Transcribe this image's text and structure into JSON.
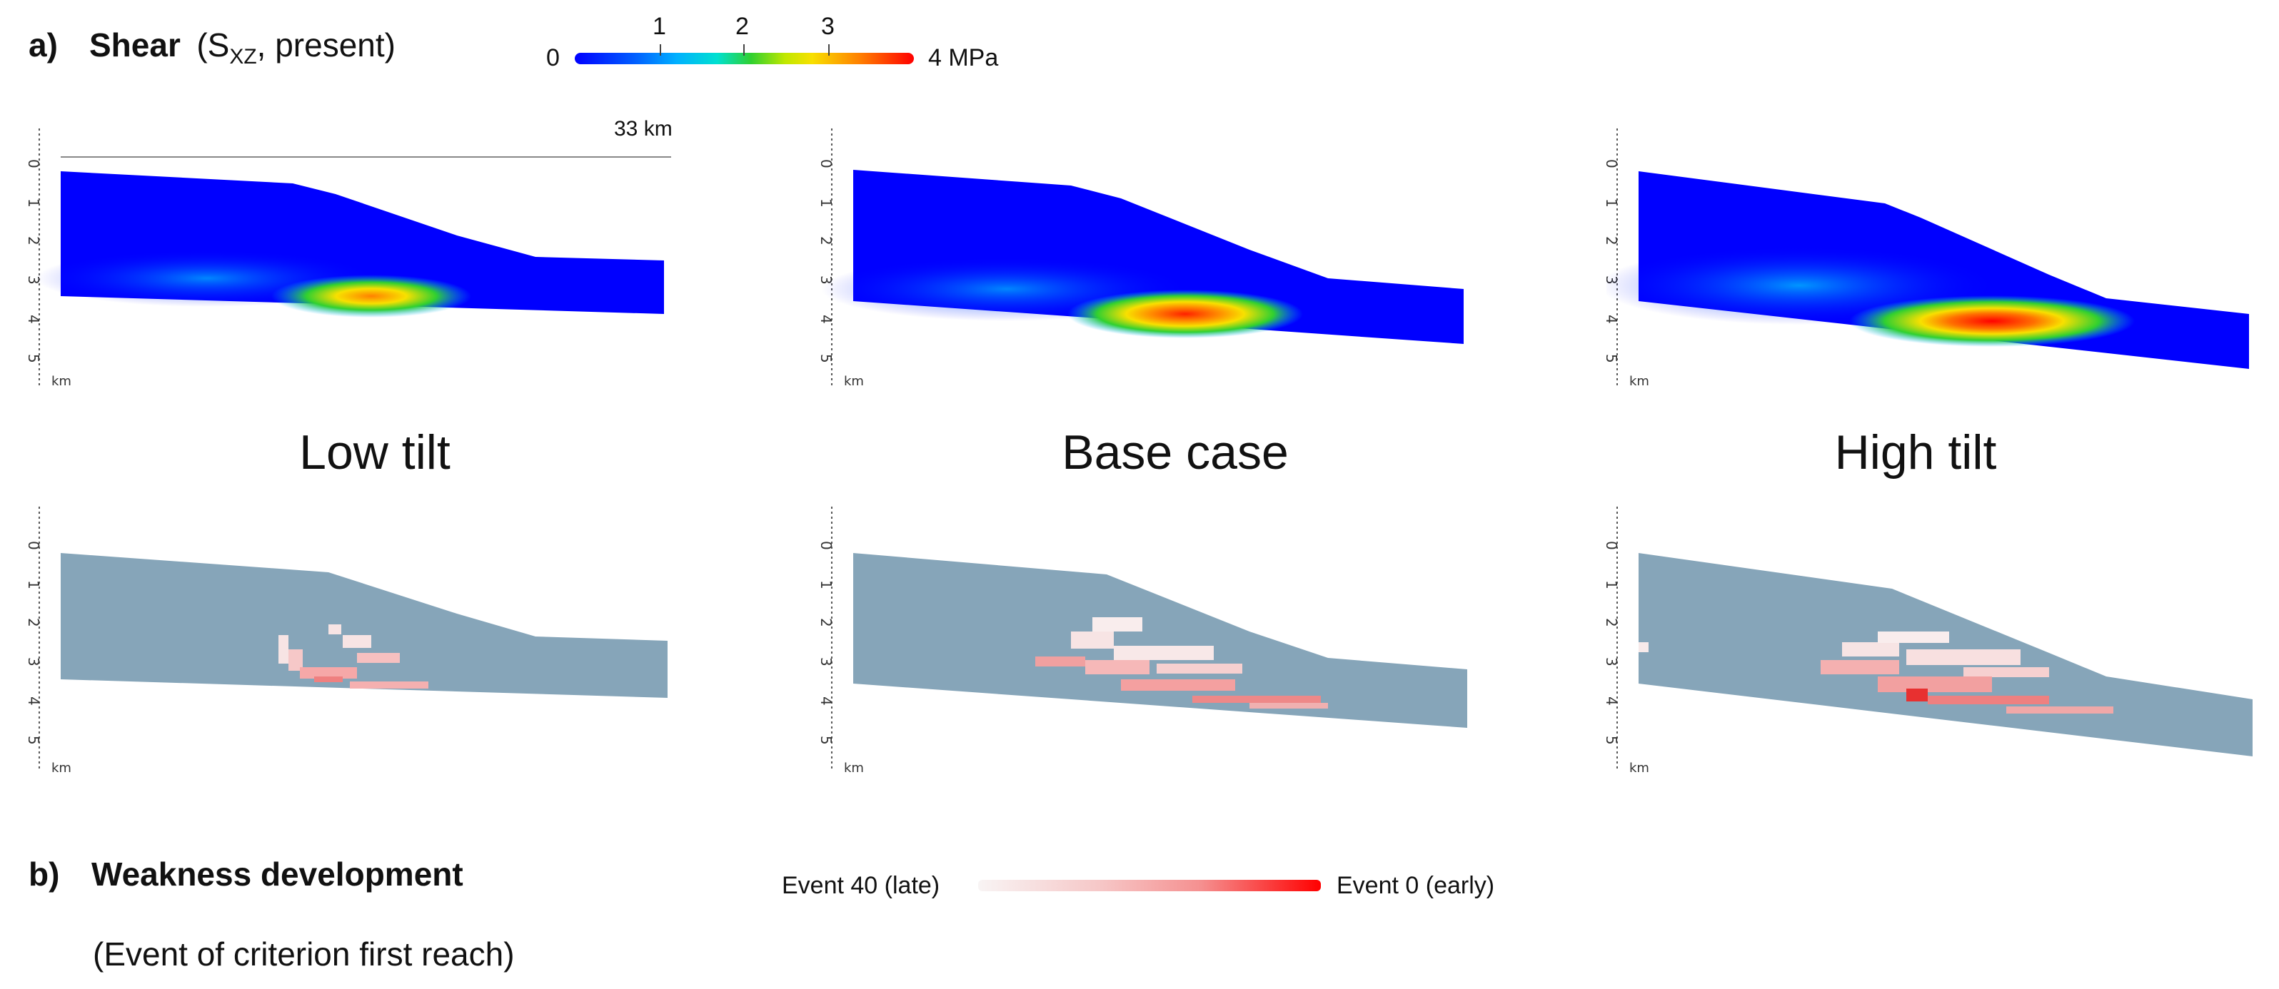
{
  "section_a": {
    "label": "a)",
    "title": "Shear",
    "paren_open": "(S",
    "subscript": "XZ",
    "paren_rest": ", present)"
  },
  "stress_colorbar": {
    "min_label": "0",
    "max_label": "4 MPa",
    "ticks": [
      "1",
      "2",
      "3"
    ],
    "tick_values": [
      1,
      2,
      3
    ],
    "range": [
      0,
      4
    ],
    "colors": [
      "#0000ff",
      "#00a0ff",
      "#00e0c0",
      "#30d030",
      "#f0f000",
      "#ff8000",
      "#ff0000"
    ]
  },
  "scale_bar": {
    "label": "33 km"
  },
  "depth_axis": {
    "ticks": [
      "0",
      "1",
      "2",
      "3",
      "4",
      "5"
    ],
    "unit": "km"
  },
  "cases": [
    {
      "name": "Low tilt"
    },
    {
      "name": "Base case"
    },
    {
      "name": "High tilt"
    }
  ],
  "section_b": {
    "label": "b)",
    "title": "Weakness development",
    "subtitle": "(Event of criterion first reach)"
  },
  "event_colorbar": {
    "left_label": "Event 40 (late)",
    "right_label": "Event 0 (early)",
    "colors": [
      "#f6f0f0",
      "#ff0000"
    ]
  },
  "colors": {
    "body_blue": "#0000ff",
    "weak_base": "#86a5b9",
    "weak_light": "#f7e4e4",
    "weak_pink": "#f6a8a8",
    "weak_red": "#e83030"
  }
}
